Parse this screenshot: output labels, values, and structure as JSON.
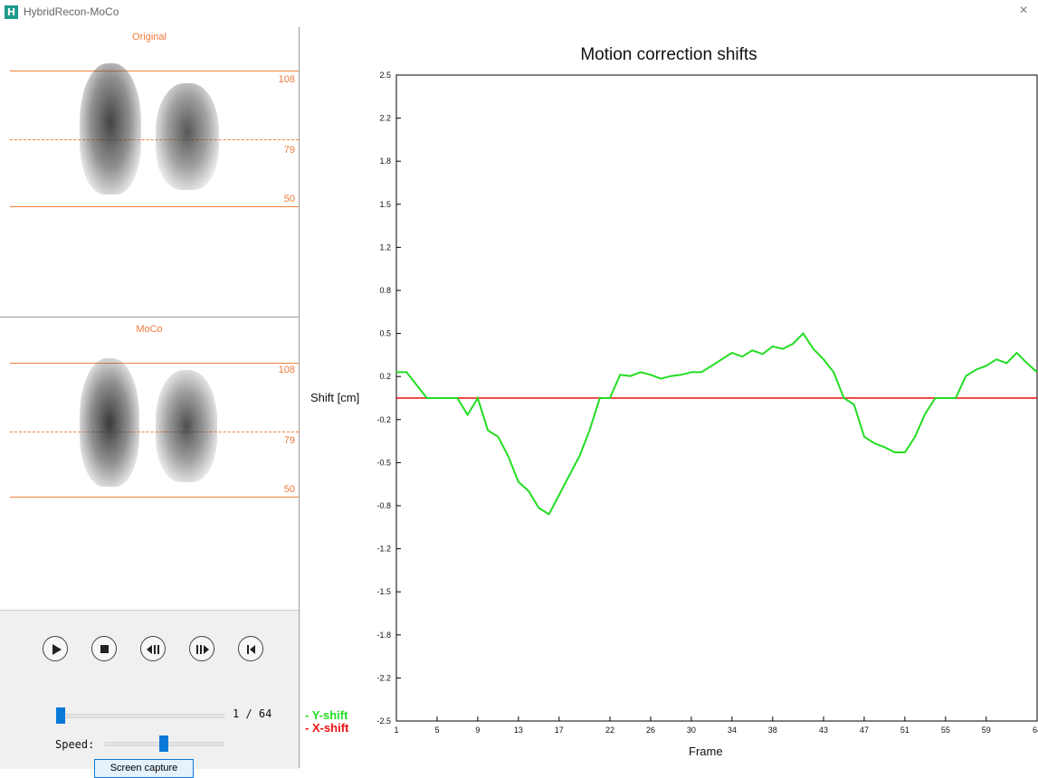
{
  "window": {
    "title": "HybridRecon-MoCo",
    "app_icon": "hybridrecon-app-icon",
    "close_glyph": "×"
  },
  "original_view": {
    "label": "Original",
    "ticks": [
      "108",
      "79",
      "50"
    ]
  },
  "moco_view": {
    "label": "MoCo",
    "ticks": [
      "108",
      "79",
      "50"
    ]
  },
  "playback": {
    "buttons": [
      {
        "name": "play-icon"
      },
      {
        "name": "stop-icon"
      },
      {
        "name": "step-back-icon"
      },
      {
        "name": "step-forward-icon"
      },
      {
        "name": "skip-to-start-icon"
      }
    ],
    "frame_current": 1,
    "frame_total": 64,
    "frame_label": "1 / 64",
    "speed_label": "Speed:",
    "speed_level": 0.5,
    "capture_label": "Screen capture"
  },
  "colors": {
    "accent_orange": "#f0823c",
    "y_shift": "#22dd22",
    "x_shift": "#ee1111",
    "slider_blue": "#0a78d7"
  },
  "chart_data": {
    "type": "line",
    "title": "Motion correction shifts",
    "xlabel": "Frame",
    "ylabel": "Shift [cm]",
    "xlim": [
      1,
      64
    ],
    "ylim": [
      -2.5,
      2.5
    ],
    "y_ticks": [
      "2.5",
      "2.2",
      "1.8",
      "1.5",
      "1.2",
      "0.8",
      "0.5",
      "0.2",
      "-0.2",
      "-0.5",
      "-0.8",
      "-1.2",
      "-1.5",
      "-1.8",
      "-2.2",
      "-2.5"
    ],
    "x_ticks": [
      "1",
      "5",
      "9",
      "13",
      "17",
      "22",
      "26",
      "30",
      "34",
      "38",
      "43",
      "47",
      "51",
      "55",
      "59",
      "64"
    ],
    "legend": "bottom-left",
    "series": [
      {
        "name": "- Y-shift",
        "color": "#22dd22",
        "x": [
          1,
          2,
          3,
          4,
          5,
          6,
          7,
          8,
          9,
          10,
          11,
          12,
          13,
          14,
          15,
          16,
          17,
          18,
          19,
          20,
          21,
          22,
          23,
          24,
          25,
          26,
          27,
          28,
          29,
          30,
          31,
          32,
          33,
          34,
          35,
          36,
          37,
          38,
          39,
          40,
          41,
          42,
          43,
          44,
          45,
          46,
          47,
          48,
          49,
          50,
          51,
          52,
          53,
          54,
          55,
          56,
          57,
          58,
          59,
          60,
          61,
          62,
          63,
          64
        ],
        "y": [
          0.2,
          0.2,
          0.1,
          0.0,
          0.0,
          0.0,
          0.0,
          -0.13,
          0.0,
          -0.25,
          -0.3,
          -0.45,
          -0.65,
          -0.72,
          -0.85,
          -0.9,
          -0.75,
          -0.6,
          -0.45,
          -0.25,
          0.0,
          0.0,
          0.18,
          0.17,
          0.2,
          0.18,
          0.15,
          0.17,
          0.18,
          0.2,
          0.2,
          0.25,
          0.3,
          0.35,
          0.32,
          0.37,
          0.34,
          0.4,
          0.38,
          0.42,
          0.5,
          0.38,
          0.3,
          0.2,
          0.0,
          -0.05,
          -0.3,
          -0.35,
          -0.38,
          -0.42,
          -0.42,
          -0.3,
          -0.12,
          0.0,
          0.0,
          0.0,
          0.17,
          0.22,
          0.25,
          0.3,
          0.27,
          0.35,
          0.27,
          0.2
        ]
      },
      {
        "name": "- X-shift",
        "color": "#ee1111",
        "x": [
          1,
          64
        ],
        "y": [
          0.0,
          0.0
        ]
      }
    ]
  }
}
